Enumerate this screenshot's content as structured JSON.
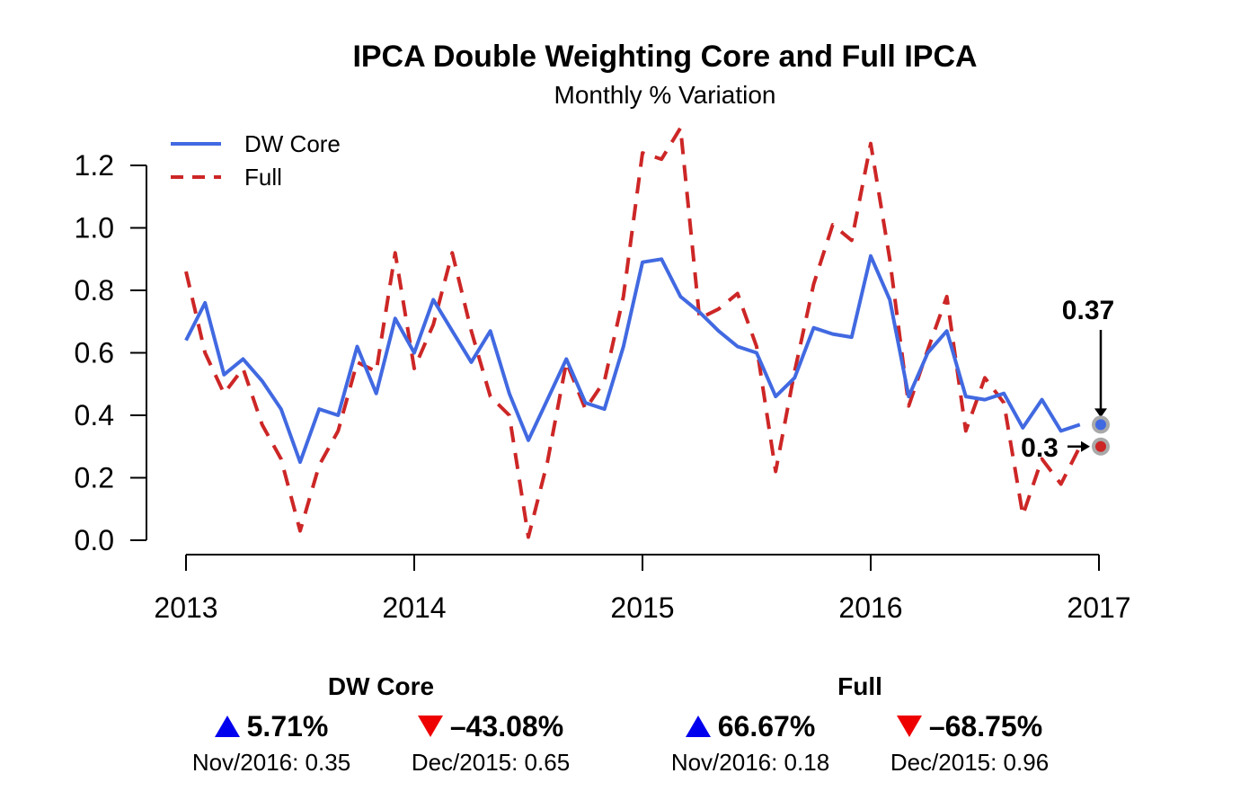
{
  "chart_data": {
    "type": "line",
    "title": "IPCA Double Weighting Core and Full IPCA",
    "subtitle": "Monthly % Variation",
    "xlabel": "",
    "ylabel": "",
    "x_ticks": [
      "2013",
      "2014",
      "2015",
      "2016",
      "2017"
    ],
    "y_ticks": [
      "0.0",
      "0.2",
      "0.4",
      "0.6",
      "0.8",
      "1.0",
      "1.2"
    ],
    "xlim": [
      2013,
      2017
    ],
    "ylim": [
      0,
      1.2
    ],
    "legend": [
      {
        "name": "DW Core",
        "style": "solid",
        "color": "#4169e1"
      },
      {
        "name": "Full",
        "style": "dashed",
        "color": "#cd2626"
      }
    ],
    "series": [
      {
        "name": "DW Core",
        "color": "#4169e1",
        "start": "2013-01",
        "values": [
          0.64,
          0.76,
          0.53,
          0.58,
          0.51,
          0.42,
          0.25,
          0.42,
          0.4,
          0.62,
          0.47,
          0.71,
          0.6,
          0.77,
          0.67,
          0.57,
          0.67,
          0.47,
          0.32,
          0.45,
          0.58,
          0.44,
          0.42,
          0.62,
          0.89,
          0.9,
          0.78,
          0.73,
          0.67,
          0.62,
          0.6,
          0.46,
          0.52,
          0.68,
          0.66,
          0.65,
          0.91,
          0.77,
          0.46,
          0.6,
          0.67,
          0.46,
          0.45,
          0.47,
          0.36,
          0.45,
          0.35,
          0.37
        ]
      },
      {
        "name": "Full",
        "color": "#cd2626",
        "start": "2013-01",
        "values": [
          0.86,
          0.6,
          0.47,
          0.55,
          0.37,
          0.26,
          0.03,
          0.24,
          0.35,
          0.57,
          0.54,
          0.92,
          0.55,
          0.69,
          0.92,
          0.67,
          0.46,
          0.4,
          0.01,
          0.25,
          0.57,
          0.42,
          0.51,
          0.78,
          1.24,
          1.22,
          1.32,
          0.71,
          0.74,
          0.79,
          0.62,
          0.22,
          0.54,
          0.82,
          1.01,
          0.96,
          1.27,
          0.9,
          0.43,
          0.61,
          0.78,
          0.35,
          0.52,
          0.44,
          0.08,
          0.26,
          0.18,
          0.3
        ]
      }
    ],
    "highlight_points": [
      {
        "series": "DW Core",
        "x": 2017,
        "y": 0.37,
        "label": "0.37"
      },
      {
        "series": "Full",
        "x": 2017,
        "y": 0.3,
        "label": "0.3"
      }
    ]
  },
  "stats": {
    "core": {
      "title": "DW Core",
      "up": {
        "pct": "5.71%",
        "sub": "Nov/2016: 0.35"
      },
      "down": {
        "pct": "–43.08%",
        "sub": "Dec/2015: 0.65"
      }
    },
    "full": {
      "title": "Full",
      "up": {
        "pct": "66.67%",
        "sub": "Nov/2016: 0.18"
      },
      "down": {
        "pct": "–68.75%",
        "sub": "Dec/2015: 0.96"
      }
    }
  }
}
